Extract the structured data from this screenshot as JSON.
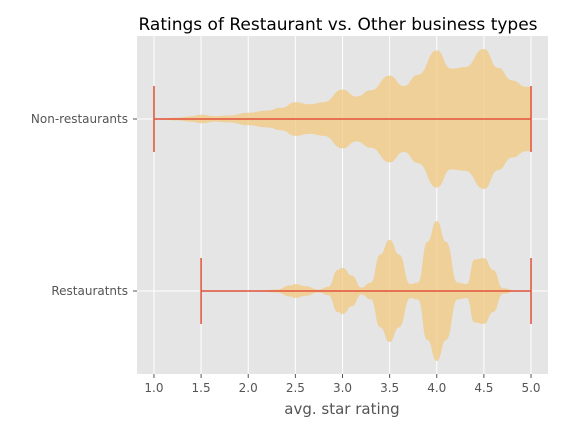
{
  "chart_data": {
    "type": "violin",
    "orientation": "horizontal",
    "title": "Ratings of Restaurant vs. Other business types",
    "xlabel": "avg. star rating",
    "ylabel": "",
    "xlim": [
      0.82,
      5.18
    ],
    "x_ticks": [
      "1.0",
      "1.5",
      "2.0",
      "2.5",
      "3.0",
      "3.5",
      "4.0",
      "4.5",
      "5.0"
    ],
    "categories": [
      "Non-restaurants",
      "Restauratnts"
    ],
    "grid": true,
    "colors": {
      "violin_fill": "#f0c87d",
      "range_line": "#e2533a",
      "background": "#e5e5e5",
      "grid": "#ffffff"
    },
    "series": [
      {
        "category": "Non-restaurants",
        "min": 1.0,
        "max": 5.0,
        "density": [
          [
            1.0,
            0.0
          ],
          [
            1.1,
            0.01
          ],
          [
            1.25,
            0.02
          ],
          [
            1.4,
            0.04
          ],
          [
            1.5,
            0.06
          ],
          [
            1.65,
            0.04
          ],
          [
            1.8,
            0.05
          ],
          [
            2.0,
            0.09
          ],
          [
            2.2,
            0.12
          ],
          [
            2.35,
            0.16
          ],
          [
            2.5,
            0.24
          ],
          [
            2.65,
            0.21
          ],
          [
            2.8,
            0.24
          ],
          [
            3.0,
            0.42
          ],
          [
            3.15,
            0.32
          ],
          [
            3.3,
            0.41
          ],
          [
            3.5,
            0.62
          ],
          [
            3.65,
            0.47
          ],
          [
            3.8,
            0.63
          ],
          [
            4.0,
            0.98
          ],
          [
            4.15,
            0.72
          ],
          [
            4.3,
            0.74
          ],
          [
            4.5,
            1.0
          ],
          [
            4.65,
            0.73
          ],
          [
            4.8,
            0.55
          ],
          [
            4.95,
            0.46
          ],
          [
            5.0,
            0.46
          ]
        ]
      },
      {
        "category": "Restauratnts",
        "min": 1.5,
        "max": 5.0,
        "density": [
          [
            1.5,
            0.0
          ],
          [
            2.1,
            0.0
          ],
          [
            2.3,
            0.02
          ],
          [
            2.45,
            0.08
          ],
          [
            2.5,
            0.1
          ],
          [
            2.6,
            0.07
          ],
          [
            2.75,
            0.02
          ],
          [
            2.85,
            0.06
          ],
          [
            2.95,
            0.3
          ],
          [
            3.0,
            0.33
          ],
          [
            3.1,
            0.22
          ],
          [
            3.2,
            0.05
          ],
          [
            3.3,
            0.12
          ],
          [
            3.4,
            0.52
          ],
          [
            3.5,
            0.73
          ],
          [
            3.6,
            0.52
          ],
          [
            3.72,
            0.1
          ],
          [
            3.8,
            0.12
          ],
          [
            3.9,
            0.7
          ],
          [
            4.0,
            1.0
          ],
          [
            4.1,
            0.7
          ],
          [
            4.22,
            0.12
          ],
          [
            4.32,
            0.1
          ],
          [
            4.4,
            0.45
          ],
          [
            4.5,
            0.47
          ],
          [
            4.6,
            0.3
          ],
          [
            4.7,
            0.04
          ],
          [
            4.85,
            0.0
          ],
          [
            5.0,
            0.0
          ]
        ]
      }
    ]
  }
}
